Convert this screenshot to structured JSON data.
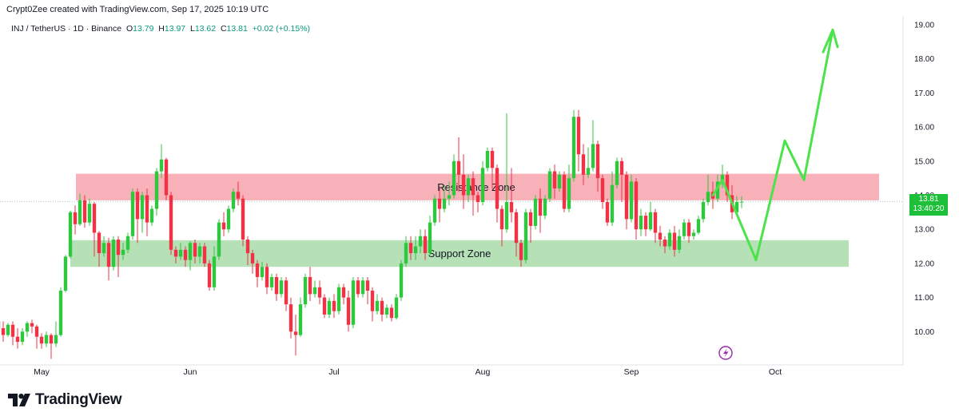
{
  "credit": "Crypt0Zee created with TradingView.com, Sep 17, 2025 10:19 UTC",
  "legend": {
    "symbol": "INJ / TetherUS · 1D · Binance",
    "o_label": "O",
    "o": "13.79",
    "h_label": "H",
    "h": "13.97",
    "l_label": "L",
    "l": "13.62",
    "c_label": "C",
    "c": "13.81",
    "change": "+0.02 (+0.15%)"
  },
  "current_price": {
    "value": "13.81",
    "countdown": "13:40:20"
  },
  "brand": {
    "name": "TradingView",
    "icon": "tradingview-logo-icon"
  },
  "colors": {
    "up": "#2ec73d",
    "down": "#ef3347",
    "resistance": "#f7a3ab",
    "support": "#a9dcaa",
    "projection": "#4be34a",
    "price_tag": "#1ec03a"
  },
  "chart_data": {
    "type": "candlestick",
    "title": "",
    "y_ticks": [
      "10.00",
      "11.00",
      "12.00",
      "13.00",
      "14.00",
      "15.00",
      "16.00",
      "17.00",
      "18.00",
      "19.00"
    ],
    "x_ticks": [
      "May",
      "Jun",
      "Jul",
      "Aug",
      "Sep",
      "Oct"
    ],
    "ylim": [
      9.0,
      19.3
    ],
    "zones": [
      {
        "label": "Resistance Zone",
        "y_low": 13.85,
        "y_high": 14.63
      },
      {
        "label": "Support Zone",
        "y_low": 11.9,
        "y_high": 12.68
      }
    ],
    "projection_path": [
      [
        14.0,
        "2025-09-18"
      ],
      [
        14.45,
        "2025-09-20"
      ],
      [
        12.1,
        "2025-09-27"
      ],
      [
        15.6,
        "2025-10-03"
      ],
      [
        14.45,
        "2025-10-07"
      ],
      [
        18.85,
        "2025-10-13"
      ]
    ],
    "projection_arrowhead": [
      [
        18.2,
        "2025-10-11"
      ],
      [
        18.85,
        "2025-10-13"
      ],
      [
        18.35,
        "2025-10-14"
      ]
    ],
    "candles_start": "2025-04-19",
    "candles": [
      [
        10.0,
        10.2,
        9.7,
        10.3
      ],
      [
        10.2,
        10.0,
        9.8,
        10.35
      ],
      [
        10.0,
        10.3,
        9.9,
        10.5
      ],
      [
        10.3,
        10.1,
        9.95,
        10.5
      ],
      [
        10.1,
        9.9,
        9.7,
        10.3
      ],
      [
        9.9,
        10.2,
        9.85,
        10.25
      ],
      [
        10.2,
        9.85,
        9.6,
        10.3
      ],
      [
        9.85,
        9.7,
        9.5,
        10.1
      ],
      [
        9.7,
        10.0,
        9.6,
        10.1
      ],
      [
        10.0,
        10.25,
        9.85,
        10.3
      ],
      [
        10.25,
        10.15,
        9.95,
        10.35
      ],
      [
        10.15,
        9.85,
        9.5,
        10.2
      ],
      [
        9.85,
        9.65,
        9.5,
        9.95
      ],
      [
        9.65,
        9.9,
        9.55,
        10.0
      ],
      [
        9.9,
        9.65,
        9.2,
        9.95
      ],
      [
        9.65,
        9.9,
        9.55,
        10.3
      ],
      [
        9.9,
        11.2,
        9.85,
        11.3
      ],
      [
        11.2,
        12.2,
        11.15,
        12.25
      ],
      [
        12.2,
        13.5,
        12.15,
        13.55
      ],
      [
        13.5,
        13.15,
        12.85,
        13.7
      ],
      [
        13.15,
        13.85,
        13.1,
        14.05
      ],
      [
        13.85,
        13.2,
        13.05,
        14.0
      ],
      [
        13.2,
        13.75,
        13.1,
        13.9
      ],
      [
        13.75,
        12.9,
        12.2,
        13.8
      ],
      [
        12.9,
        12.3,
        11.9,
        12.95
      ],
      [
        12.3,
        12.6,
        12.2,
        12.8
      ],
      [
        12.6,
        11.9,
        11.5,
        12.75
      ],
      [
        11.9,
        12.7,
        11.8,
        12.8
      ],
      [
        12.7,
        12.25,
        11.6,
        12.8
      ],
      [
        12.25,
        12.4,
        12.1,
        12.6
      ],
      [
        12.4,
        12.8,
        12.3,
        12.9
      ],
      [
        12.8,
        14.1,
        12.7,
        14.2
      ],
      [
        14.1,
        13.3,
        12.6,
        14.2
      ],
      [
        13.3,
        14.0,
        12.9,
        14.1
      ],
      [
        14.0,
        13.2,
        12.8,
        14.2
      ],
      [
        13.2,
        13.6,
        13.1,
        13.7
      ],
      [
        13.6,
        14.7,
        13.4,
        14.8
      ],
      [
        14.7,
        15.05,
        14.5,
        15.5
      ],
      [
        15.05,
        14.0,
        13.85,
        15.1
      ],
      [
        14.0,
        12.4,
        12.25,
        14.1
      ],
      [
        12.4,
        12.2,
        12.0,
        12.5
      ],
      [
        12.2,
        12.4,
        12.1,
        12.6
      ],
      [
        12.4,
        12.1,
        11.9,
        12.5
      ],
      [
        12.1,
        12.6,
        11.8,
        12.65
      ],
      [
        12.6,
        12.2,
        12.0,
        12.7
      ],
      [
        12.2,
        12.5,
        12.0,
        12.6
      ],
      [
        12.5,
        12.0,
        11.9,
        12.6
      ],
      [
        12.0,
        11.3,
        11.2,
        12.1
      ],
      [
        11.3,
        12.2,
        11.2,
        12.5
      ],
      [
        12.2,
        13.2,
        12.1,
        13.3
      ],
      [
        13.2,
        13.0,
        12.8,
        13.5
      ],
      [
        13.0,
        13.6,
        12.9,
        13.7
      ],
      [
        13.6,
        14.1,
        13.5,
        14.2
      ],
      [
        14.1,
        13.9,
        13.7,
        14.4
      ],
      [
        13.9,
        12.7,
        12.5,
        14.0
      ],
      [
        12.7,
        12.3,
        11.95,
        12.8
      ],
      [
        12.3,
        12.0,
        11.7,
        12.4
      ],
      [
        12.0,
        11.6,
        11.3,
        12.1
      ],
      [
        11.6,
        11.9,
        11.5,
        12.05
      ],
      [
        11.9,
        11.3,
        11.1,
        12.0
      ],
      [
        11.3,
        11.6,
        11.2,
        11.7
      ],
      [
        11.6,
        11.1,
        10.9,
        11.7
      ],
      [
        11.1,
        11.5,
        11.0,
        11.6
      ],
      [
        11.5,
        10.8,
        10.6,
        11.6
      ],
      [
        10.8,
        10.0,
        9.8,
        11.0
      ],
      [
        10.0,
        9.9,
        9.3,
        10.5
      ],
      [
        9.9,
        10.8,
        9.85,
        11.0
      ],
      [
        10.8,
        11.6,
        10.7,
        11.7
      ],
      [
        11.6,
        11.1,
        10.9,
        11.9
      ],
      [
        11.1,
        11.3,
        11.0,
        11.5
      ],
      [
        11.3,
        11.0,
        10.8,
        11.5
      ],
      [
        11.0,
        10.5,
        10.4,
        11.1
      ],
      [
        10.5,
        10.9,
        10.4,
        11.0
      ],
      [
        10.9,
        10.6,
        10.4,
        11.1
      ],
      [
        10.6,
        11.3,
        10.5,
        11.4
      ],
      [
        11.3,
        11.0,
        10.8,
        11.4
      ],
      [
        11.0,
        10.2,
        10.0,
        11.2
      ],
      [
        10.2,
        11.5,
        10.1,
        11.6
      ],
      [
        11.5,
        11.1,
        11.0,
        11.6
      ],
      [
        11.1,
        11.5,
        11.0,
        11.6
      ],
      [
        11.5,
        11.2,
        10.8,
        11.6
      ],
      [
        11.2,
        10.6,
        10.3,
        11.3
      ],
      [
        10.6,
        10.9,
        10.5,
        11.1
      ],
      [
        10.9,
        10.5,
        10.3,
        11.0
      ],
      [
        10.5,
        10.7,
        10.4,
        10.8
      ],
      [
        10.7,
        10.4,
        10.3,
        10.8
      ],
      [
        10.4,
        11.0,
        10.35,
        11.1
      ],
      [
        11.0,
        12.0,
        10.9,
        12.1
      ],
      [
        12.0,
        12.6,
        11.9,
        12.8
      ],
      [
        12.6,
        12.3,
        12.1,
        12.8
      ],
      [
        12.3,
        12.5,
        12.1,
        12.8
      ],
      [
        12.5,
        12.8,
        12.3,
        13.0
      ],
      [
        12.8,
        12.3,
        12.1,
        13.0
      ],
      [
        12.3,
        13.2,
        12.2,
        13.4
      ],
      [
        13.2,
        13.9,
        13.1,
        14.0
      ],
      [
        13.9,
        13.6,
        13.2,
        14.2
      ],
      [
        13.6,
        13.9,
        13.5,
        14.3
      ],
      [
        13.9,
        14.0,
        13.7,
        14.4
      ],
      [
        14.0,
        15.0,
        13.9,
        15.2
      ],
      [
        15.0,
        14.6,
        14.1,
        15.7
      ],
      [
        14.6,
        14.0,
        13.6,
        15.2
      ],
      [
        14.0,
        14.5,
        13.8,
        14.6
      ],
      [
        14.5,
        14.0,
        13.4,
        14.7
      ],
      [
        14.0,
        13.8,
        13.5,
        14.1
      ],
      [
        13.8,
        14.8,
        13.7,
        15.0
      ],
      [
        14.8,
        15.3,
        14.7,
        15.4
      ],
      [
        15.3,
        14.8,
        14.2,
        15.4
      ],
      [
        14.8,
        13.6,
        13.2,
        14.9
      ],
      [
        13.6,
        13.0,
        12.5,
        13.7
      ],
      [
        13.0,
        13.8,
        12.9,
        16.4
      ],
      [
        13.8,
        13.5,
        13.2,
        14.8
      ],
      [
        13.5,
        12.6,
        12.2,
        13.6
      ],
      [
        12.6,
        12.1,
        11.9,
        12.7
      ],
      [
        12.1,
        13.5,
        12.0,
        13.6
      ],
      [
        13.5,
        13.1,
        12.6,
        13.6
      ],
      [
        13.1,
        13.9,
        13.0,
        14.0
      ],
      [
        13.9,
        13.4,
        12.9,
        14.2
      ],
      [
        13.4,
        13.9,
        13.3,
        14.0
      ],
      [
        13.9,
        14.7,
        13.8,
        14.8
      ],
      [
        14.7,
        14.2,
        13.9,
        14.9
      ],
      [
        14.2,
        14.6,
        14.1,
        14.7
      ],
      [
        14.6,
        13.6,
        13.5,
        14.7
      ],
      [
        13.6,
        14.5,
        13.5,
        14.9
      ],
      [
        14.5,
        16.3,
        14.4,
        16.5
      ],
      [
        16.3,
        15.2,
        14.7,
        16.5
      ],
      [
        15.2,
        14.6,
        14.3,
        15.5
      ],
      [
        14.6,
        14.8,
        14.5,
        15.4
      ],
      [
        14.8,
        15.5,
        14.7,
        16.2
      ],
      [
        15.5,
        14.5,
        14.1,
        15.6
      ],
      [
        14.5,
        13.8,
        13.6,
        14.6
      ],
      [
        13.8,
        13.2,
        13.1,
        13.9
      ],
      [
        13.2,
        14.3,
        13.1,
        14.7
      ],
      [
        14.3,
        15.0,
        14.2,
        15.1
      ],
      [
        15.0,
        14.6,
        13.8,
        15.1
      ],
      [
        14.6,
        13.3,
        13.0,
        14.7
      ],
      [
        13.3,
        14.4,
        13.2,
        14.6
      ],
      [
        14.4,
        13.0,
        12.7,
        14.5
      ],
      [
        13.0,
        13.4,
        12.8,
        13.6
      ],
      [
        13.4,
        13.0,
        12.8,
        13.5
      ],
      [
        13.0,
        13.5,
        12.95,
        13.8
      ],
      [
        13.5,
        12.9,
        12.6,
        13.6
      ],
      [
        12.9,
        12.7,
        12.5,
        13.1
      ],
      [
        12.7,
        12.5,
        12.3,
        12.8
      ],
      [
        12.5,
        12.9,
        12.4,
        13.0
      ],
      [
        12.9,
        12.4,
        12.2,
        13.1
      ],
      [
        12.4,
        12.8,
        12.3,
        13.0
      ],
      [
        12.8,
        13.2,
        12.7,
        13.3
      ],
      [
        13.2,
        12.8,
        12.6,
        13.3
      ],
      [
        12.8,
        12.9,
        12.7,
        13.0
      ],
      [
        12.9,
        13.3,
        12.85,
        13.4
      ],
      [
        13.3,
        13.8,
        13.2,
        13.9
      ],
      [
        13.8,
        14.1,
        13.7,
        14.6
      ],
      [
        14.1,
        13.9,
        13.6,
        14.4
      ],
      [
        13.9,
        14.4,
        13.8,
        14.6
      ],
      [
        14.4,
        14.6,
        14.2,
        14.9
      ],
      [
        14.6,
        14.0,
        13.8,
        14.7
      ],
      [
        14.0,
        13.5,
        13.3,
        14.3
      ],
      [
        13.5,
        13.8,
        13.4,
        13.97
      ],
      [
        13.79,
        13.81,
        13.62,
        13.97
      ]
    ]
  }
}
